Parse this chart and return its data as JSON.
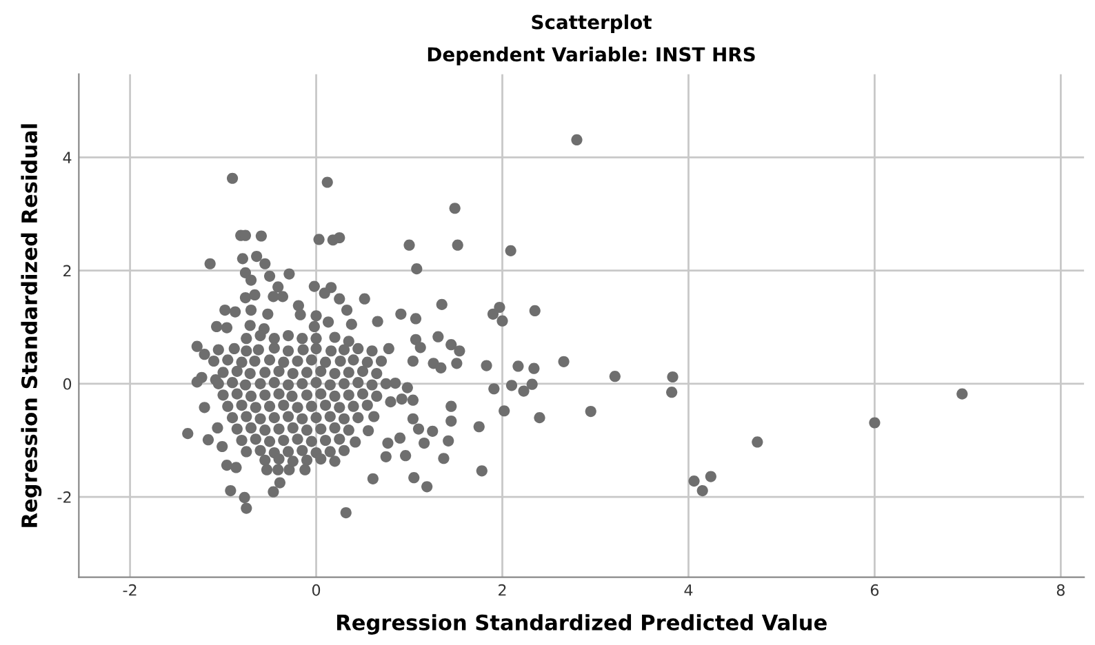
{
  "chart_data": {
    "type": "scatter",
    "title": "Scatterplot",
    "subtitle": "Dependent Variable: INST HRS",
    "xlabel": "Regression Standardized Predicted Value",
    "ylabel": "Regression Standardized Residual",
    "xlim": [
      -2.55,
      8.25
    ],
    "ylim": [
      -3.42,
      5.47
    ],
    "xticks": [
      -2,
      0,
      2,
      4,
      6,
      8
    ],
    "yticks": [
      -2,
      0,
      2,
      4
    ],
    "grid": true,
    "marker": "circle",
    "series": [
      {
        "color": "#6e6e6e",
        "x": [
          2.8,
          -0.9,
          0.12,
          1.49,
          1.0,
          1.52,
          1.08,
          2.09,
          0.52,
          1.35,
          0.91,
          1.07,
          0.66,
          1.97,
          1.9,
          2.0,
          2.35,
          1.31,
          0.78,
          1.07,
          1.12,
          1.45,
          1.54,
          1.04,
          1.26,
          1.34,
          1.51,
          1.83,
          2.17,
          2.34,
          2.66,
          1.91,
          2.1,
          2.32,
          2.23,
          2.02,
          2.4,
          1.75,
          1.45,
          1.45,
          1.04,
          1.1,
          1.25,
          1.16,
          1.42,
          0.96,
          1.37,
          1.78,
          1.05,
          1.19,
          0.75,
          0.9,
          0.77,
          0.85,
          0.98,
          0.8,
          0.92,
          1.04,
          0.62,
          0.56,
          0.42,
          0.61,
          0.32,
          3.21,
          3.83,
          3.82,
          2.95,
          4.74,
          4.06,
          4.24,
          4.15,
          6.0,
          6.94,
          -0.81,
          -0.76,
          -0.59,
          0.03,
          0.18,
          0.25,
          -1.14,
          -0.79,
          -0.64,
          -0.55,
          -0.76,
          -0.7,
          -0.5,
          -0.29,
          -0.41,
          -0.02,
          0.16,
          -0.76,
          -0.66,
          -0.46,
          -0.36,
          0.09,
          0.25,
          -0.98,
          -0.87,
          -0.7,
          -0.52,
          -0.19,
          -0.17,
          0.0,
          0.33,
          -1.07,
          -0.96,
          -0.71,
          -0.56,
          0.38,
          0.13,
          -0.02,
          -0.75,
          -0.6,
          -0.45,
          -0.3,
          -0.15,
          0.0,
          0.2,
          0.35,
          -1.28,
          -1.2,
          -1.23,
          -1.28,
          -1.08,
          -1.2,
          -1.38,
          -1.16,
          -1.06,
          -1.01,
          -0.96,
          -0.86,
          -0.92,
          -0.77,
          -0.75,
          -0.46,
          -0.39,
          -0.53,
          -0.41,
          -0.29,
          -0.12,
          -1.05,
          -0.88,
          -0.75,
          -0.62,
          -0.45,
          -0.3,
          -0.14,
          0.0,
          0.16,
          0.3,
          0.45,
          0.6,
          -1.1,
          -0.95,
          -0.8,
          -0.66,
          -0.5,
          -0.35,
          -0.2,
          -0.05,
          0.1,
          0.26,
          0.4,
          0.55,
          0.7,
          -1.0,
          -0.85,
          -0.71,
          -0.55,
          -0.4,
          -0.25,
          -0.1,
          0.05,
          0.2,
          0.35,
          0.5,
          0.65,
          -1.05,
          -0.9,
          -0.76,
          -0.6,
          -0.45,
          -0.3,
          -0.15,
          0.0,
          0.15,
          0.3,
          0.45,
          0.6,
          0.75,
          -1.0,
          -0.85,
          -0.7,
          -0.55,
          -0.4,
          -0.26,
          -0.1,
          0.05,
          0.2,
          0.35,
          0.5,
          0.65,
          -0.95,
          -0.8,
          -0.65,
          -0.5,
          -0.35,
          -0.2,
          -0.05,
          0.1,
          0.25,
          0.4,
          0.55,
          -0.9,
          -0.75,
          -0.6,
          -0.45,
          -0.3,
          -0.15,
          0.0,
          0.15,
          0.3,
          0.45,
          -0.85,
          -0.7,
          -0.55,
          -0.4,
          -0.25,
          -0.1,
          0.05,
          0.2,
          0.35,
          -0.8,
          -0.65,
          -0.5,
          -0.35,
          -0.2,
          -0.05,
          0.1,
          0.25,
          -0.75,
          -0.6,
          -0.45,
          -0.3,
          -0.15,
          0.0,
          0.15,
          0.3,
          -0.55,
          -0.4,
          -0.25,
          -0.1,
          0.05,
          0.2
        ],
        "values": [
          4.31,
          3.63,
          3.56,
          3.1,
          2.45,
          2.45,
          2.03,
          2.35,
          1.5,
          1.4,
          1.23,
          1.15,
          1.1,
          1.35,
          1.23,
          1.11,
          1.29,
          0.83,
          0.62,
          0.78,
          0.64,
          0.69,
          0.58,
          0.4,
          0.36,
          0.28,
          0.36,
          0.32,
          0.31,
          0.27,
          0.39,
          -0.09,
          -0.03,
          -0.01,
          -0.13,
          -0.48,
          -0.6,
          -0.76,
          -0.4,
          -0.66,
          -0.62,
          -0.8,
          -0.84,
          -1.05,
          -1.01,
          -1.27,
          -1.32,
          -1.54,
          -1.66,
          -1.82,
          -1.29,
          -0.96,
          -1.05,
          0.01,
          -0.07,
          -0.32,
          -0.27,
          -0.29,
          -0.58,
          -0.83,
          -1.03,
          -1.68,
          -2.28,
          0.13,
          0.12,
          -0.15,
          -0.49,
          -1.03,
          -1.72,
          -1.64,
          -1.89,
          -0.69,
          -0.18,
          2.62,
          2.62,
          2.61,
          2.55,
          2.54,
          2.58,
          2.12,
          2.21,
          2.25,
          2.12,
          1.96,
          1.83,
          1.9,
          1.94,
          1.71,
          1.72,
          1.7,
          1.52,
          1.57,
          1.54,
          1.54,
          1.6,
          1.5,
          1.3,
          1.27,
          1.3,
          1.23,
          1.38,
          1.22,
          1.2,
          1.3,
          1.01,
          0.99,
          1.03,
          0.97,
          1.05,
          1.09,
          1.01,
          0.8,
          0.85,
          0.8,
          0.85,
          0.8,
          0.8,
          0.82,
          0.75,
          0.66,
          0.52,
          0.11,
          0.03,
          0.07,
          -0.42,
          -0.88,
          -0.99,
          -0.78,
          -1.11,
          -1.44,
          -1.48,
          -1.89,
          -2.01,
          -2.2,
          -1.91,
          -1.75,
          -1.52,
          -1.52,
          -1.52,
          -1.52,
          0.6,
          0.62,
          0.58,
          0.6,
          0.63,
          0.58,
          0.6,
          0.62,
          0.58,
          0.6,
          0.62,
          0.58,
          0.4,
          0.42,
          0.38,
          0.4,
          0.42,
          0.38,
          0.4,
          0.42,
          0.38,
          0.4,
          0.42,
          0.38,
          0.4,
          0.2,
          0.22,
          0.18,
          0.2,
          0.22,
          0.18,
          0.2,
          0.22,
          0.18,
          0.2,
          0.22,
          0.18,
          0.0,
          0.02,
          -0.02,
          0.0,
          0.02,
          -0.02,
          0.0,
          0.02,
          -0.02,
          0.0,
          0.02,
          -0.02,
          0.0,
          -0.2,
          -0.18,
          -0.22,
          -0.2,
          -0.18,
          -0.22,
          -0.2,
          -0.18,
          -0.22,
          -0.2,
          -0.18,
          -0.22,
          -0.4,
          -0.38,
          -0.42,
          -0.4,
          -0.38,
          -0.42,
          -0.4,
          -0.38,
          -0.42,
          -0.4,
          -0.38,
          -0.6,
          -0.58,
          -0.62,
          -0.6,
          -0.58,
          -0.62,
          -0.6,
          -0.58,
          -0.62,
          -0.6,
          -0.8,
          -0.78,
          -0.82,
          -0.8,
          -0.78,
          -0.82,
          -0.8,
          -0.78,
          -0.82,
          -1.0,
          -0.98,
          -1.02,
          -1.0,
          -0.98,
          -1.02,
          -1.0,
          -0.98,
          -1.2,
          -1.18,
          -1.22,
          -1.2,
          -1.18,
          -1.22,
          -1.2,
          -1.18,
          -1.35,
          -1.33,
          -1.37,
          -1.35,
          -1.33,
          -1.37
        ]
      }
    ]
  }
}
